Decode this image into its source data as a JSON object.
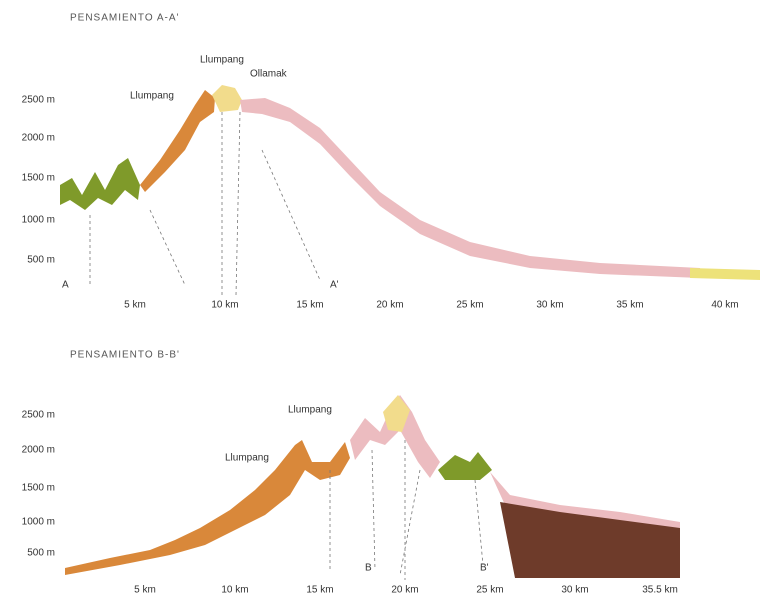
{
  "sections": [
    {
      "title": "PENSAMIENTO A-A'",
      "y_labels": [
        "2500 m",
        "2000 m",
        "1500 m",
        "1000 m",
        "500 m"
      ],
      "x_labels": [
        "5 km",
        "10 km",
        "15 km",
        "20 km",
        "25 km",
        "30 km",
        "35 km",
        "40 km"
      ],
      "annotations": [
        "Llumpang",
        "Llumpang",
        "Ollamak",
        "A",
        "A'"
      ]
    },
    {
      "title": "PENSAMIENTO B-B'",
      "y_labels": [
        "2500 m",
        "2000 m",
        "1500 m",
        "1000 m",
        "500 m"
      ],
      "x_labels": [
        "5 km",
        "10 km",
        "15 km",
        "20 km",
        "25 km",
        "30 km",
        "35.5 km"
      ],
      "annotations": [
        "Llumpang",
        "Llumpang",
        "B",
        "B'"
      ]
    }
  ]
}
